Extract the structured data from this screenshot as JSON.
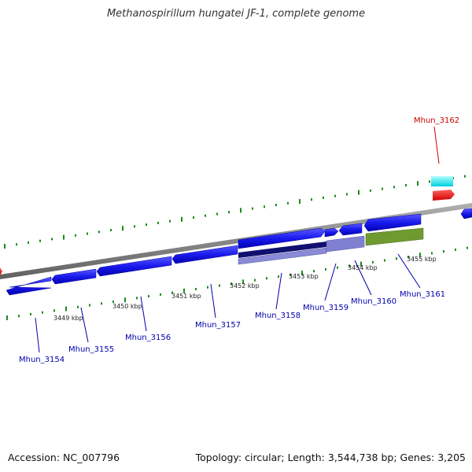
{
  "header": {
    "title": "Methanospirillum hungatei JF-1, complete genome"
  },
  "footer": {
    "accession": "Accession: NC_007796",
    "stats": "Topology: circular; Length: 3,544,738 bp; Genes: 3,205"
  },
  "ruler": [
    {
      "label": "3449 kbp"
    },
    {
      "label": "3450 kbp"
    },
    {
      "label": "3451 kbp"
    },
    {
      "label": "3452 kbp"
    },
    {
      "label": "3453 kbp"
    },
    {
      "label": "3454 kbp"
    },
    {
      "label": "3455 kbp"
    }
  ],
  "genes": [
    {
      "name": "Mhun_3154",
      "color": "#0000aa"
    },
    {
      "name": "Mhun_3155",
      "color": "#0000aa"
    },
    {
      "name": "Mhun_3156",
      "color": "#0000aa"
    },
    {
      "name": "Mhun_3157",
      "color": "#0000aa"
    },
    {
      "name": "Mhun_3158",
      "color": "#0000aa"
    },
    {
      "name": "Mhun_3159",
      "color": "#0000aa"
    },
    {
      "name": "Mhun_3160",
      "color": "#0000aa"
    },
    {
      "name": "Mhun_3161",
      "color": "#0000aa"
    },
    {
      "name": "Mhun_3162",
      "color": "#cc0000"
    }
  ],
  "colors": {
    "backbone": "#808080",
    "cds_forward": "#2020ee",
    "cds_reverse": "#ee0000",
    "rna": "#00e0e8",
    "orf_dark": "#101070",
    "orf_light": "#8080d0",
    "feature_green": "#6f9a30",
    "tick": "#1a8a1a"
  }
}
